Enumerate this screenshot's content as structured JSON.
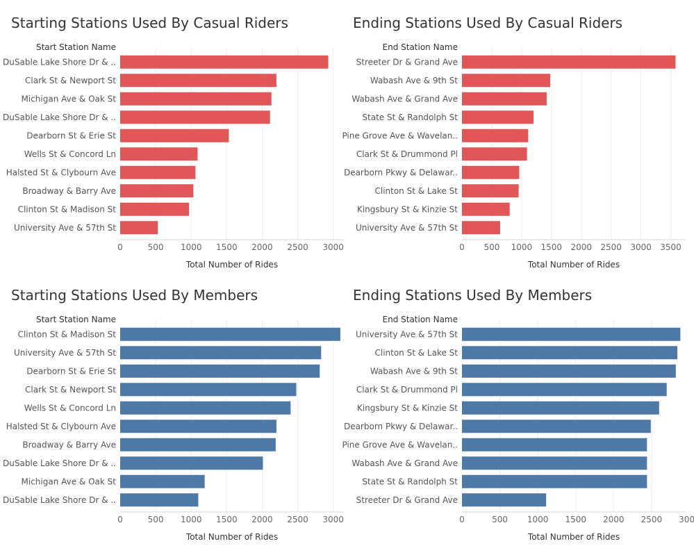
{
  "colors": {
    "casual": "#e15759",
    "members": "#4e79a7"
  },
  "chart_data": [
    {
      "type": "bar",
      "orientation": "horizontal",
      "title": "Starting Stations Used By Casual Riders",
      "category_header": "Start Station Name",
      "xlabel": "Total Number of Rides",
      "xlim": [
        0,
        3150
      ],
      "xticks": [
        0,
        500,
        1000,
        1500,
        2000,
        2500,
        3000
      ],
      "color": "#e15759",
      "grid": true,
      "categories": [
        "DuSable Lake Shore Dr & ..",
        "Clark St & Newport St",
        "Michigan Ave & Oak St",
        "DuSable Lake Shore Dr & ..",
        "Dearborn St & Erie St",
        "Wells St & Concord Ln",
        "Halsted St & Clybourn Ave",
        "Broadway & Barry Ave",
        "Clinton St & Madison St",
        "University Ave & 57th St"
      ],
      "values": [
        2930,
        2200,
        2130,
        2110,
        1530,
        1090,
        1060,
        1030,
        970,
        530
      ]
    },
    {
      "type": "bar",
      "orientation": "horizontal",
      "title": "Ending Stations Used By Casual Riders",
      "category_header": "End Station Name",
      "xlabel": "Total Number of Rides",
      "xlim": [
        0,
        3750
      ],
      "xticks": [
        0,
        500,
        1000,
        1500,
        2000,
        2500,
        3000,
        3500
      ],
      "color": "#e15759",
      "grid": true,
      "categories": [
        "Streeter Dr & Grand Ave",
        "Wabash Ave & 9th St",
        "Wabash Ave & Grand Ave",
        "State St & Randolph St",
        "Pine Grove Ave & Wavelan..",
        "Clark St & Drummond Pl",
        "Dearborn Pkwy & Delawar..",
        "Clinton St & Lake St",
        "Kingsbury St & Kinzie St",
        "University Ave & 57th St"
      ],
      "values": [
        3580,
        1480,
        1420,
        1200,
        1110,
        1090,
        960,
        950,
        800,
        640
      ]
    },
    {
      "type": "bar",
      "orientation": "horizontal",
      "title": "Starting Stations Used By Members",
      "category_header": "Start Station Name",
      "xlabel": "Total Number of Rides",
      "xlim": [
        0,
        3150
      ],
      "xticks": [
        0,
        500,
        1000,
        1500,
        2000,
        2500,
        3000
      ],
      "color": "#4e79a7",
      "grid": true,
      "categories": [
        "Clinton St & Madison St",
        "University Ave & 57th St",
        "Dearborn St & Erie St",
        "Clark St & Newport St",
        "Wells St & Concord Ln",
        "Halsted St & Clybourn Ave",
        "Broadway & Barry Ave",
        "DuSable Lake Shore Dr & ..",
        "Michigan Ave & Oak St",
        "DuSable Lake Shore Dr & .."
      ],
      "values": [
        3100,
        2830,
        2810,
        2480,
        2400,
        2200,
        2190,
        2010,
        1190,
        1100
      ]
    },
    {
      "type": "bar",
      "orientation": "horizontal",
      "title": "Ending Stations Used By Members",
      "category_header": "End Station Name",
      "xlabel": "Total Number of Rides",
      "xlim": [
        0,
        2950
      ],
      "xticks": [
        0,
        500,
        1000,
        1500,
        2000,
        2500,
        3000
      ],
      "color": "#4e79a7",
      "grid": true,
      "categories": [
        "University Ave & 57th St",
        "Clinton St & Lake St",
        "Wabash Ave & 9th St",
        "Clark St & Drummond Pl",
        "Kingsbury St & Kinzie St",
        "Dearborn Pkwy & Delawar..",
        "Pine Grove Ave & Wavelan..",
        "Wabash Ave & Grand Ave",
        "State St & Randolph St",
        "Streeter Dr & Grand Ave"
      ],
      "values": [
        2880,
        2840,
        2820,
        2700,
        2600,
        2490,
        2440,
        2440,
        2440,
        1110
      ]
    }
  ]
}
